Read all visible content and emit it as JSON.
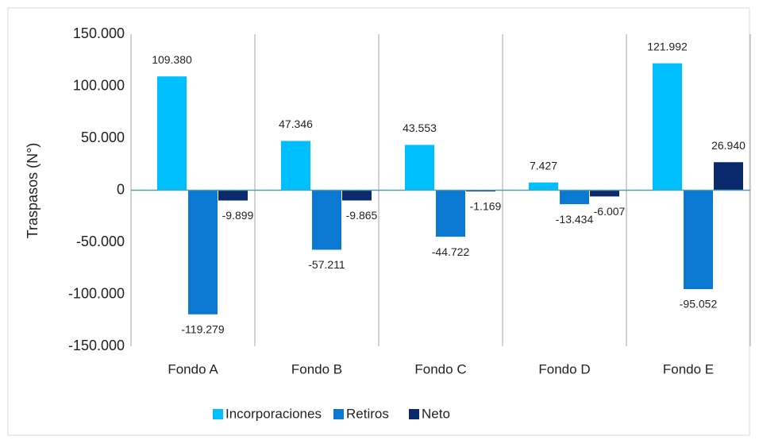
{
  "chart_data": {
    "type": "bar",
    "y_label": "Traspasos (N°)",
    "categories": [
      "Fondo A",
      "Fondo B",
      "Fondo C",
      "Fondo D",
      "Fondo E"
    ],
    "series": [
      {
        "name": "Incorporaciones",
        "color": "#00bfff",
        "values": [
          109380,
          47346,
          43553,
          7427,
          121992
        ],
        "value_labels": [
          "109.380",
          "47.346",
          "43.553",
          "7.427",
          "121.992"
        ]
      },
      {
        "name": "Retiros",
        "color": "#0b78d1",
        "values": [
          -119279,
          -57211,
          -44722,
          -13434,
          -95052
        ],
        "value_labels": [
          "-119.279",
          "-57.211",
          "-44.722",
          "-13.434",
          "-95.052"
        ]
      },
      {
        "name": "Neto",
        "color": "#0b2a6e",
        "values": [
          -9899,
          -9865,
          -1169,
          -6007,
          26940
        ],
        "value_labels": [
          "-9.899",
          "-9.865",
          "-1.169",
          "-6.007",
          "26.940"
        ]
      }
    ],
    "ylim": [
      -150000,
      150000
    ],
    "yticks": [
      {
        "value": -150000,
        "label": "-150.000"
      },
      {
        "value": -100000,
        "label": "-100.000"
      },
      {
        "value": -50000,
        "label": "-50.000"
      },
      0,
      {
        "value": 50000,
        "label": "50.000"
      },
      {
        "value": 100000,
        "label": "100.000"
      },
      {
        "value": 150000,
        "label": "150.000"
      }
    ],
    "legend": "bottom"
  }
}
